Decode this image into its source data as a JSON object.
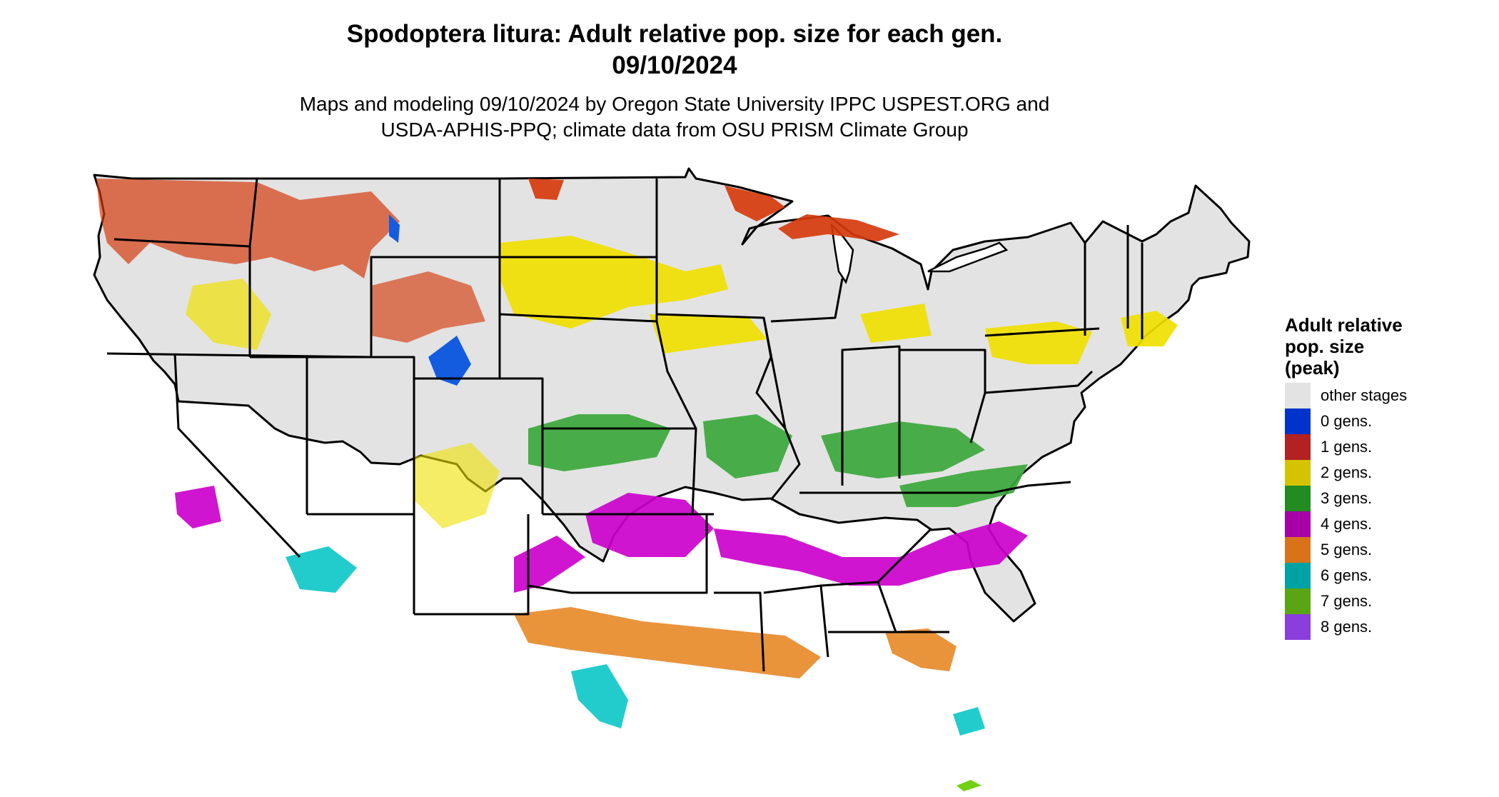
{
  "title": {
    "line1": "Spodoptera litura: Adult relative pop. size for each gen.",
    "line2": "09/10/2024"
  },
  "subtitle": {
    "line1": "Maps and modeling 09/10/2024 by Oregon State University IPPC USPEST.ORG and",
    "line2": "USDA-APHIS-PPQ; climate data from OSU PRISM Climate Group"
  },
  "legend": {
    "title": "Adult relative\npop. size\n(peak)",
    "items": [
      {
        "label": "other stages",
        "color": "#e3e3e3"
      },
      {
        "label": "0 gens.",
        "color": "#0033cc"
      },
      {
        "label": "1 gens.",
        "color": "#b22222"
      },
      {
        "label": "2 gens.",
        "color": "#d4c400"
      },
      {
        "label": "3 gens.",
        "color": "#228b22"
      },
      {
        "label": "4 gens.",
        "color": "#a600a6"
      },
      {
        "label": "5 gens.",
        "color": "#d9731a"
      },
      {
        "label": "6 gens.",
        "color": "#00a3a3"
      },
      {
        "label": "7 gens.",
        "color": "#5aa514"
      },
      {
        "label": "8 gens.",
        "color": "#8a3fdc"
      }
    ]
  },
  "map": {
    "base_color": "#e3e3e3",
    "border_color": "#000000",
    "zone_colors": {
      "gen0": "#0050e0",
      "gen1": "#d63a0c",
      "gen2": "#f0e000",
      "gen3": "#3aa83a",
      "gen4": "#cc00cc",
      "gen5": "#e88a2a",
      "gen6": "#10c8c8",
      "gen7": "#66cc00"
    }
  }
}
